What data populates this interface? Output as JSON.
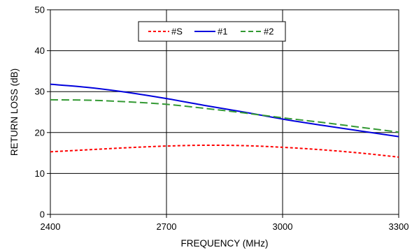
{
  "chart_data": {
    "type": "line",
    "title": "",
    "xlabel": "FREQUENCY (MHz)",
    "ylabel": "RETURN LOSS (dB)",
    "xlim": [
      2400,
      3300
    ],
    "ylim": [
      0,
      50
    ],
    "xticks": [
      2400,
      2700,
      3000,
      3300
    ],
    "yticks": [
      0,
      10,
      20,
      30,
      40,
      50
    ],
    "grid": true,
    "legend_position": "top-center",
    "series": [
      {
        "name": "#S",
        "color": "#ff0000",
        "dash": "short-dash",
        "x": [
          2400,
          2500,
          2600,
          2700,
          2800,
          2900,
          3000,
          3100,
          3200,
          3300
        ],
        "y": [
          15.3,
          15.8,
          16.3,
          16.7,
          16.9,
          16.8,
          16.4,
          15.8,
          15.0,
          14.0
        ]
      },
      {
        "name": "#1",
        "color": "#0000dd",
        "dash": "solid",
        "x": [
          2400,
          2500,
          2600,
          2700,
          2800,
          2900,
          3000,
          3100,
          3200,
          3300
        ],
        "y": [
          31.8,
          31.0,
          29.8,
          28.3,
          26.6,
          25.0,
          23.3,
          21.8,
          20.4,
          19.0
        ]
      },
      {
        "name": "#2",
        "color": "#339933",
        "dash": "long-dash",
        "x": [
          2400,
          2500,
          2600,
          2700,
          2800,
          2900,
          3000,
          3100,
          3200,
          3300
        ],
        "y": [
          28.0,
          27.9,
          27.5,
          26.9,
          25.9,
          24.8,
          23.6,
          22.5,
          21.3,
          20.1
        ]
      }
    ]
  }
}
